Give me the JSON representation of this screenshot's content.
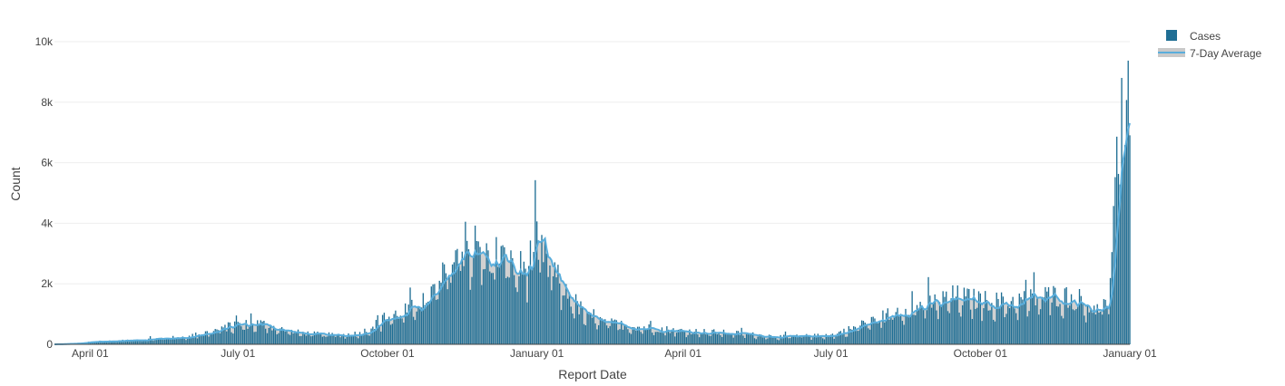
{
  "colors": {
    "cases": "#1f6e94",
    "average_line": "#5aaedc",
    "average_fill": "#c9c9c9",
    "grid": "#eeeeee",
    "text": "#444444"
  },
  "chart_data": {
    "type": "bar",
    "xlabel": "Report Date",
    "ylabel": "Count",
    "ylim": [
      0,
      10000
    ],
    "yticks": [
      0,
      2000,
      4000,
      6000,
      8000,
      10000
    ],
    "ytick_labels": [
      "0",
      "2k",
      "4k",
      "6k",
      "8k",
      "10k"
    ],
    "xlim": [
      "2020-03-10",
      "2022-01-01"
    ],
    "xticks": [
      "2020-04-01",
      "2020-07-01",
      "2020-10-01",
      "2021-01-01",
      "2021-04-01",
      "2021-07-01",
      "2021-10-01",
      "2022-01-01"
    ],
    "xtick_labels": [
      "April 01",
      "July 01",
      "October 01",
      "January 01",
      "April 01",
      "July 01",
      "October 01",
      "January 01"
    ],
    "grid": true,
    "legend_position": "top-right",
    "legend": [
      {
        "label": "Cases",
        "symbol": "bar"
      },
      {
        "label": "7-Day Average",
        "symbol": "area-line"
      }
    ],
    "series": [
      {
        "name": "Cases",
        "kind": "bar",
        "points_note_excluded": true,
        "x_start": "2020-03-10",
        "x_end": "2022-01-01",
        "weekly_anchor_dates": [
          "2020-03-10",
          "2020-03-24",
          "2020-04-01",
          "2020-05-01",
          "2020-06-01",
          "2020-06-20",
          "2020-07-01",
          "2020-07-15",
          "2020-08-01",
          "2020-08-15",
          "2020-09-01",
          "2020-09-15",
          "2020-10-01",
          "2020-10-15",
          "2020-11-01",
          "2020-11-15",
          "2020-11-25",
          "2020-12-01",
          "2020-12-10",
          "2020-12-15",
          "2020-12-25",
          "2021-01-01",
          "2021-01-10",
          "2021-01-20",
          "2021-02-01",
          "2021-02-15",
          "2021-03-01",
          "2021-04-01",
          "2021-05-01",
          "2021-06-01",
          "2021-07-01",
          "2021-07-15",
          "2021-08-01",
          "2021-08-15",
          "2021-09-01",
          "2021-09-15",
          "2021-10-01",
          "2021-10-15",
          "2021-11-01",
          "2021-11-15",
          "2021-12-01",
          "2021-12-10",
          "2021-12-15",
          "2021-12-20",
          "2021-12-25",
          "2022-01-01"
        ],
        "weekly_anchor_values": [
          0,
          30,
          80,
          150,
          260,
          500,
          650,
          700,
          430,
          350,
          300,
          380,
          900,
          1150,
          1900,
          3300,
          3250,
          2900,
          3000,
          2600,
          2500,
          3350,
          2400,
          1700,
          900,
          700,
          600,
          450,
          380,
          250,
          300,
          550,
          900,
          1200,
          1350,
          1600,
          1450,
          1400,
          1500,
          1650,
          1500,
          1200,
          1200,
          1800,
          6500,
          9000
        ]
      },
      {
        "name": "7-Day Average",
        "kind": "area-line"
      }
    ]
  }
}
